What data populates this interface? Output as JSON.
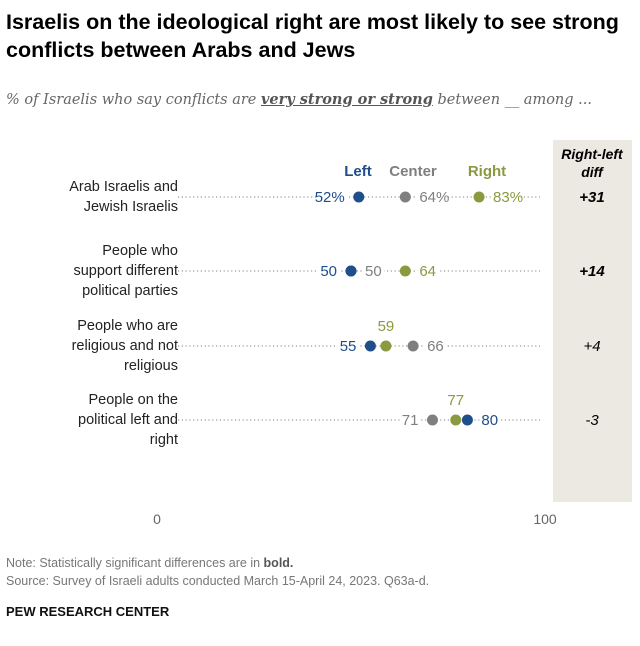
{
  "title": "Israelis on the ideological right are most likely to see strong conflicts between Arabs and Jews",
  "subtitle": {
    "pre": "% of Israelis who say conflicts are ",
    "emph": "very strong or strong",
    "post": " between __ among ..."
  },
  "colors": {
    "Left": "#1f4e8c",
    "Center": "#7f7f7f",
    "Right": "#8a9a3e",
    "diff_bg": "#ece9e2"
  },
  "chart_data": {
    "type": "dot",
    "categories": [
      "Arab Israelis and Jewish Israelis",
      "People who support different political parties",
      "People who are religious and not religious",
      "People on the political left and right"
    ],
    "series": [
      {
        "name": "Left",
        "values": [
          52,
          50,
          55,
          80
        ]
      },
      {
        "name": "Center",
        "values": [
          64,
          50,
          66,
          71
        ]
      },
      {
        "name": "Right",
        "values": [
          83,
          64,
          59,
          77
        ]
      }
    ],
    "value_labels": [
      [
        "52%",
        "64%",
        "83%"
      ],
      [
        "50",
        "50",
        "64"
      ],
      [
        "55",
        "66",
        "59"
      ],
      [
        "80",
        "71",
        "77"
      ]
    ],
    "diff_header": "Right-left diff",
    "diff": [
      "+31",
      "+14",
      "+4",
      "-3"
    ],
    "diff_bold": [
      true,
      true,
      false,
      false
    ],
    "xlim": [
      0,
      100
    ],
    "xticks": [
      "0",
      "100"
    ],
    "legend_placement": "top"
  },
  "note": "Note: Statistically significant differences are in ",
  "note_bold": "bold.",
  "source": "Source: Survey of Israeli adults conducted March 15-April 24, 2023. Q63a-d.",
  "brand": "PEW RESEARCH CENTER"
}
